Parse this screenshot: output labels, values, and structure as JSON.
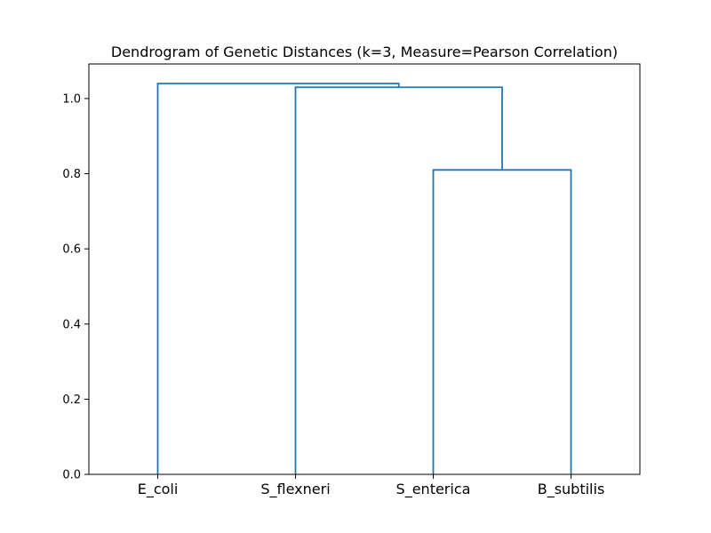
{
  "chart_data": {
    "type": "dendrogram",
    "title": "Dendrogram of Genetic Distances (k=3, Measure=Pearson Correlation)",
    "xlabel": "",
    "ylabel": "",
    "leaves": [
      "E_coli",
      "S_flexneri",
      "S_enterica",
      "B_subtilis"
    ],
    "merges": [
      {
        "left": "S_enterica",
        "right": "B_subtilis",
        "height": 0.81
      },
      {
        "left": "S_flexneri",
        "right": "S_enterica + B_subtilis",
        "height": 1.03
      },
      {
        "left": "E_coli",
        "right": "S_flexneri + S_enterica + B_subtilis",
        "height": 1.04
      }
    ],
    "yticks": [
      "0.0",
      "0.2",
      "0.4",
      "0.6",
      "0.8",
      "1.0"
    ],
    "ylim": [
      0,
      1.092
    ],
    "grid": false,
    "line_color": "#1f77b4"
  }
}
